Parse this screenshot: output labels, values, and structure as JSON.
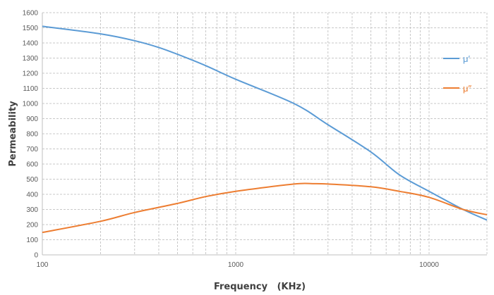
{
  "chart_data": {
    "type": "line",
    "title": "",
    "xlabel": "Frequency   (KHz)",
    "ylabel": "Permeability",
    "xscale": "log",
    "xlim": [
      100,
      20000
    ],
    "ylim": [
      0,
      1600
    ],
    "x_tick_labels": [
      "100",
      "1000",
      "10000"
    ],
    "y_tick_labels": [
      "0",
      "100",
      "200",
      "300",
      "400",
      "500",
      "600",
      "700",
      "800",
      "900",
      "1000",
      "1100",
      "1200",
      "1300",
      "1400",
      "1500",
      "1600"
    ],
    "grid": true,
    "legend_position": "right",
    "series": [
      {
        "name": "μ′",
        "color": "#5b9bd5",
        "x": [
          100,
          200,
          300,
          400,
          500,
          700,
          1000,
          2000,
          3000,
          5000,
          7000,
          10000,
          15000,
          20000
        ],
        "values": [
          1510,
          1460,
          1415,
          1370,
          1325,
          1250,
          1160,
          1000,
          860,
          680,
          530,
          420,
          300,
          230
        ]
      },
      {
        "name": "μ″",
        "color": "#ed7d31",
        "x": [
          100,
          200,
          300,
          500,
          700,
          1000,
          2000,
          2500,
          3000,
          5000,
          7000,
          10000,
          15000,
          20000
        ],
        "values": [
          148,
          222,
          280,
          340,
          385,
          420,
          468,
          470,
          468,
          450,
          420,
          380,
          300,
          265
        ]
      }
    ]
  }
}
